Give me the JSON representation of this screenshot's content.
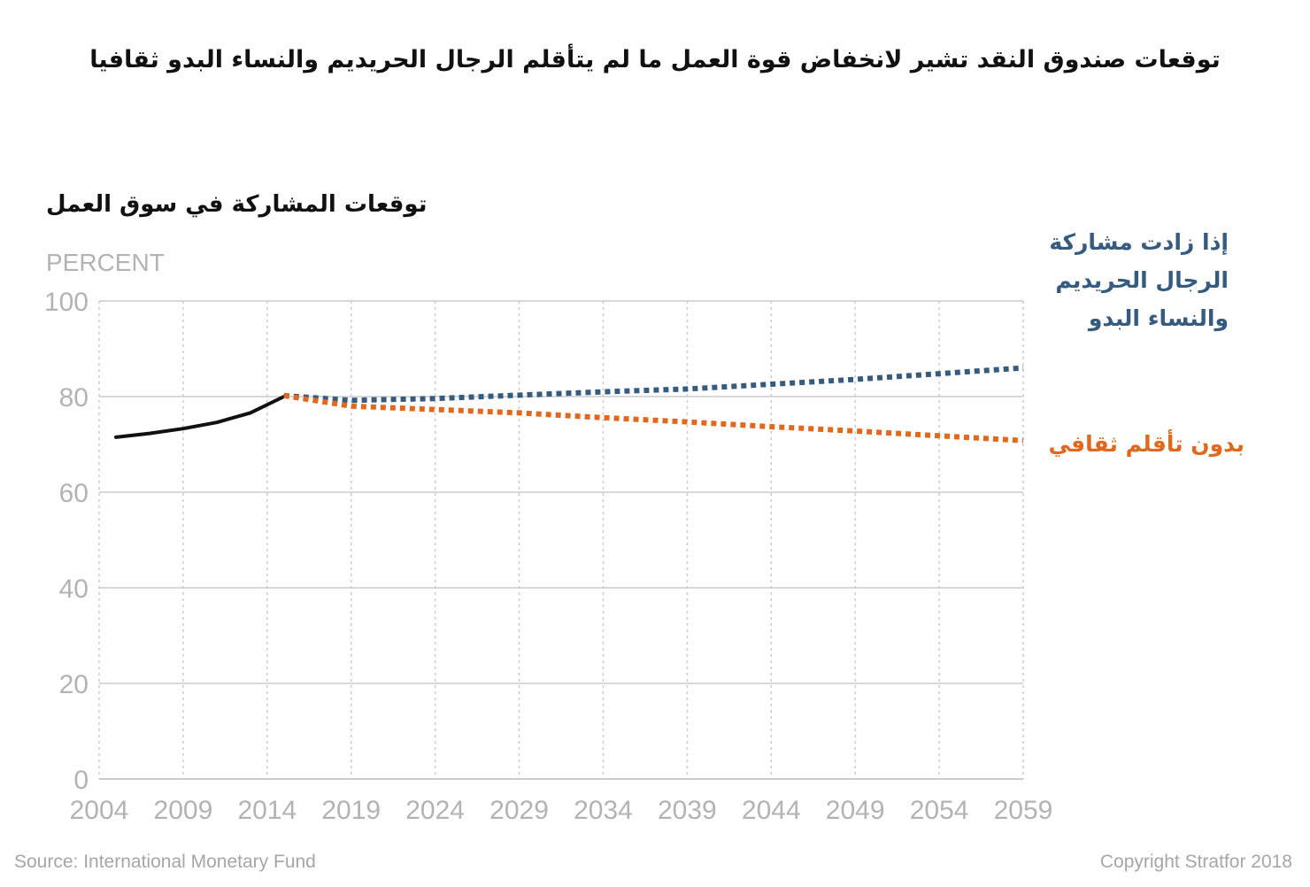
{
  "title": "توقعات صندوق النقد تشير لانخفاض قوة العمل ما لم يتأقلم الرجال الحريديم والنساء البدو ثقافيا",
  "source": "Source: International Monetary Fund",
  "copyright": "Copyright Stratfor 2018",
  "colors": {
    "historical": "#111111",
    "projection_adapt": "#355b7f",
    "projection_no_adapt": "#e1691f",
    "grid": "#cccccc",
    "axis_text": "#b3b3b3"
  },
  "chart_data": {
    "type": "line",
    "title": "توقعات المشاركة في سوق العمل",
    "ylabel": "PERCENT",
    "xlabel": "",
    "xlim": [
      2004,
      2059
    ],
    "ylim": [
      0,
      100
    ],
    "x_ticks": [
      2004,
      2009,
      2014,
      2019,
      2024,
      2029,
      2034,
      2039,
      2044,
      2049,
      2054,
      2059
    ],
    "y_ticks": [
      0,
      20,
      40,
      60,
      80,
      100
    ],
    "grid": "vertical dotted, horizontal solid",
    "legend": "direct labels at right",
    "series": [
      {
        "key": "historical",
        "style": "solid",
        "x": [
          2005,
          2007,
          2009,
          2011,
          2013,
          2015
        ],
        "y": [
          71.5,
          72.3,
          73.3,
          74.6,
          76.6,
          80
        ]
      },
      {
        "key": "adapt",
        "name": "إذا زادت مشاركة الرجال الحريديم والنساء البدو",
        "style": "dotted",
        "x": [
          2015,
          2019,
          2024,
          2029,
          2034,
          2039,
          2044,
          2049,
          2054,
          2059
        ],
        "y": [
          80.2,
          79.2,
          79.6,
          80.3,
          81,
          81.6,
          82.6,
          83.6,
          84.8,
          86
        ]
      },
      {
        "key": "no_adapt",
        "name": "بدون تأقلم ثقافي",
        "style": "dotted",
        "x": [
          2015,
          2019,
          2024,
          2029,
          2034,
          2039,
          2044,
          2049,
          2054,
          2059
        ],
        "y": [
          80.2,
          78,
          77.3,
          76.6,
          75.6,
          74.7,
          73.7,
          72.8,
          71.8,
          70.8
        ]
      }
    ]
  }
}
